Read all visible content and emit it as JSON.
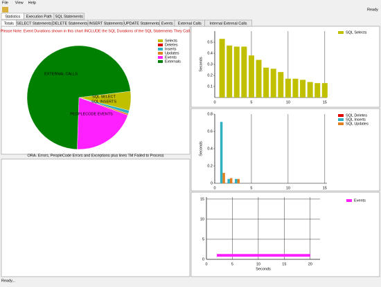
{
  "menu": [
    "File",
    "View",
    "Help"
  ],
  "status_top": "Ready",
  "tabs": [
    "Statistics",
    "Execution Path",
    "SQL Statements"
  ],
  "subtabs": [
    "Totals",
    "SELECT Statements",
    "DELETE Statements",
    "INSERT Statements",
    "UPDATE Statements",
    "Events",
    "External Calls",
    "Internal External Calls"
  ],
  "note": "Please Note: Event Durations shown in this chart INCLUDE the SQL Durations of the SQL Statements They Call.",
  "errors_title": "ORA- Errors, PeopleCode Errors and Exceptions plus lines TM Failed to Process",
  "status_bar": "Ready...",
  "chart_data": [
    {
      "type": "pie",
      "categories": [
        "Selects",
        "Deletes",
        "Inserts",
        "Updates",
        "Events",
        "Externals"
      ],
      "values": [
        6,
        0,
        1,
        0.5,
        20,
        72.5
      ],
      "colors": [
        "#c0c000",
        "#e00000",
        "#30b0c0",
        "#e08020",
        "#ff20ff",
        "#008000"
      ],
      "slice_labels": [
        "SQL SELECT",
        null,
        "SQL INSERTS",
        null,
        "PEOPLECODE EVENTS",
        "EXTERNAL CALLS"
      ]
    },
    {
      "type": "bar",
      "series": [
        {
          "name": "SQL Selects",
          "color": "#c0c000",
          "values": [
            0.53,
            0.47,
            0.46,
            0.46,
            0.38,
            0.34,
            0.27,
            0.26,
            0.23,
            0.17,
            0.17,
            0.16,
            0.14,
            0.13,
            0.13
          ]
        }
      ],
      "x": [
        1,
        2,
        3,
        4,
        5,
        6,
        7,
        8,
        9,
        10,
        11,
        12,
        13,
        14,
        15
      ],
      "ylabel": "Seconds",
      "xlim": [
        0,
        15.3
      ],
      "ylim": [
        0,
        0.6
      ],
      "xticks": [
        0,
        5,
        10,
        15
      ],
      "yticks": [
        0.1,
        0.2,
        0.3,
        0.4,
        0.5
      ],
      "grid": true
    },
    {
      "type": "bar",
      "series": [
        {
          "name": "SQL Deletes",
          "color": "#e00000",
          "values": [
            0,
            0,
            0
          ]
        },
        {
          "name": "SQL Inserts",
          "color": "#30b0c0",
          "values": [
            0.71,
            0.05,
            0.05
          ]
        },
        {
          "name": "SQL Updates",
          "color": "#e08020",
          "values": [
            0.12,
            0.06,
            0.05
          ]
        }
      ],
      "x": [
        1,
        2,
        3
      ],
      "ylabel": "Seconds",
      "xlim": [
        0,
        15.3
      ],
      "ylim": [
        0,
        0.8
      ],
      "xticks": [
        0,
        5,
        10,
        15
      ],
      "yticks": [
        0,
        0.2,
        0.4,
        0.6,
        0.8
      ],
      "grid": true
    },
    {
      "type": "line",
      "series": [
        {
          "name": "Events",
          "color": "#ff20ff",
          "values": [
            1,
            1
          ]
        }
      ],
      "x": [
        2,
        20
      ],
      "xlabel": "Seconds",
      "xlim": [
        0,
        21.9
      ],
      "ylim": [
        0,
        15.5
      ],
      "xticks": [
        0,
        5,
        10,
        15,
        20
      ],
      "yticks": [
        0,
        5,
        10,
        15
      ],
      "grid": true
    }
  ]
}
